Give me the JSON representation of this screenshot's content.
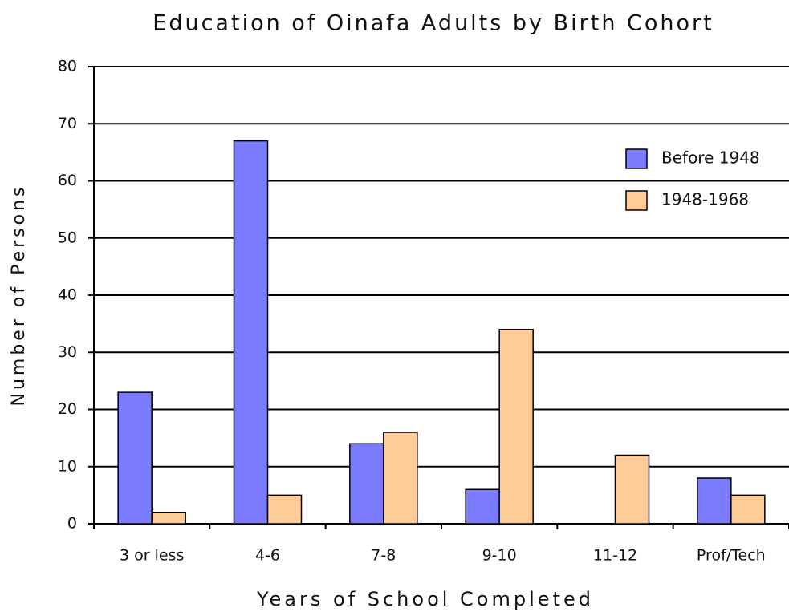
{
  "chart_data": {
    "type": "bar",
    "title": "Education of Oinafa Adults by Birth Cohort",
    "x_label": "Years of School Completed",
    "y_label": "Number of Persons",
    "categories": [
      "3 or less",
      "4-6",
      "7-8",
      "9-10",
      "11-12",
      "Prof/Tech"
    ],
    "series": [
      {
        "name": "Before 1948",
        "color": "#7b7bff",
        "values": [
          23,
          67,
          14,
          6,
          0,
          8
        ]
      },
      {
        "name": "1948-1968",
        "color": "#ffcc99",
        "values": [
          2,
          5,
          16,
          34,
          12,
          5
        ]
      }
    ],
    "ylim": [
      0,
      80
    ],
    "yticks": [
      0,
      10,
      20,
      30,
      40,
      50,
      60,
      70,
      80
    ],
    "grid": true,
    "legend": "upper right"
  }
}
